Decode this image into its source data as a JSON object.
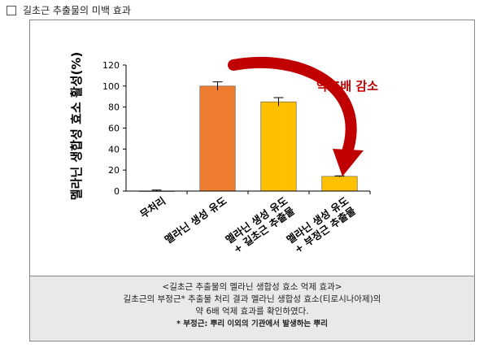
{
  "heading": {
    "text": "길초근 추출물의 미백 효과"
  },
  "chart_data": {
    "type": "bar",
    "ylabel": "멜라닌 생합성 효소 활성(%)",
    "ylim": [
      0,
      120
    ],
    "yticks": [
      0,
      20,
      40,
      60,
      80,
      100,
      120
    ],
    "categories": [
      "무처리",
      "멜라닌 생성 유도",
      "멜라닌 생성 유도 + 길초근 추출물",
      "멜라닌 생성 유도 + 부정근 추출물"
    ],
    "category_lines": [
      [
        "무처리"
      ],
      [
        "멜라닌 생성 유도"
      ],
      [
        "멜라닌 생성 유도",
        "+ 길초근 추출물"
      ],
      [
        "멜라닌 생성 유도",
        "+ 부정근 추출물"
      ]
    ],
    "values": [
      0,
      100,
      85,
      14
    ],
    "errors": [
      1,
      4,
      4,
      0.5
    ],
    "colors": [
      "#cccccc",
      "#ee7d2f",
      "#ffc000",
      "#ffc000"
    ],
    "annotation": "약 6배 감소",
    "annotation_color": "#c00000",
    "arrow_color": "#c00000",
    "grid": false
  },
  "caption": {
    "title": "<길초근 추출물의 멜라닌 생합성 효소 억제 효과>",
    "line1": "길초근의 부정근* 추출물 처리 결과 멜라닌 생합성 효소(티로시나아제)의",
    "line2": "약 6배 억제 효과를 확인하였다.",
    "note": "* 부정근: 뿌리 이외의 기관에서 발생하는 뿌리"
  }
}
